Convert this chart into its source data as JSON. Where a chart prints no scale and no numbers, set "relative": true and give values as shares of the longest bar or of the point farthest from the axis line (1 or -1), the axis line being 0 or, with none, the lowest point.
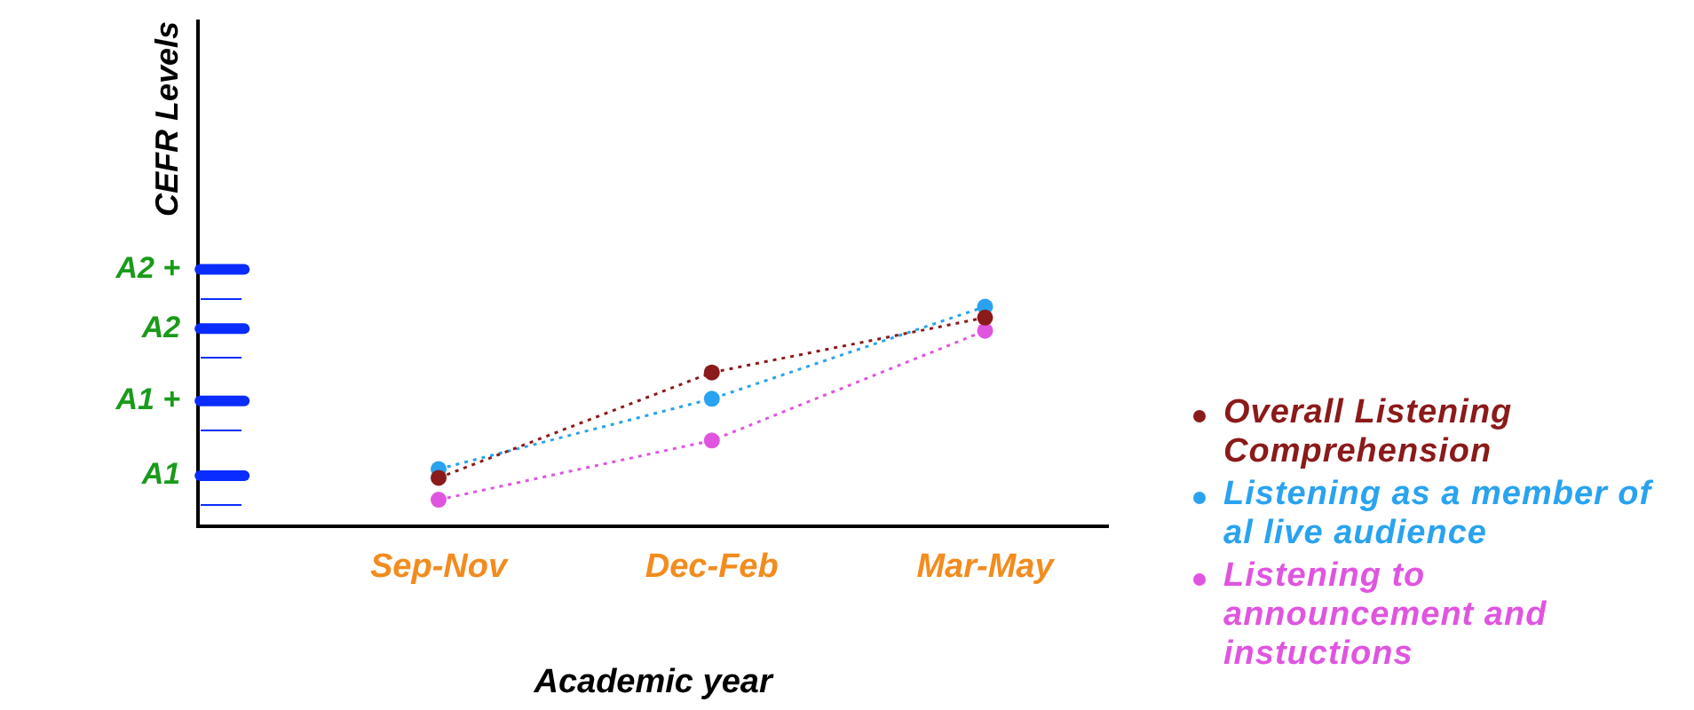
{
  "chart_data": {
    "type": "line",
    "xlabel": "Academic year",
    "ylabel": "CEFR Levels",
    "relative": true,
    "categories": [
      "Sep-Nov",
      "Dec-Feb",
      "Mar-May"
    ],
    "series": [
      {
        "name": "Overall Listening Comprehension",
        "color": "#8b1a1a",
        "values": [
          0.22,
          0.7,
          0.95
        ]
      },
      {
        "name": "Listening as a member of al live audience",
        "color": "#29a3ef",
        "values": [
          0.26,
          0.58,
          1
        ]
      },
      {
        "name": "Listening to announcement and instuctions",
        "color": "#e055e0",
        "values": [
          0.12,
          0.39,
          0.89
        ]
      }
    ],
    "ref_lines": [
      {
        "axis": "y",
        "value": 0.23,
        "label": "A1",
        "color": "#0a2cff"
      },
      {
        "axis": "y",
        "value": 0.57,
        "label": "A1 +",
        "color": "#0a2cff"
      },
      {
        "axis": "y",
        "value": 0.9,
        "label": "A2",
        "color": "#0a2cff"
      },
      {
        "axis": "y",
        "value": 1.17,
        "label": "A2 +",
        "color": "#0a2cff"
      }
    ],
    "grid": false,
    "legend": "right",
    "marker": "circle",
    "line_style": "dotted"
  }
}
